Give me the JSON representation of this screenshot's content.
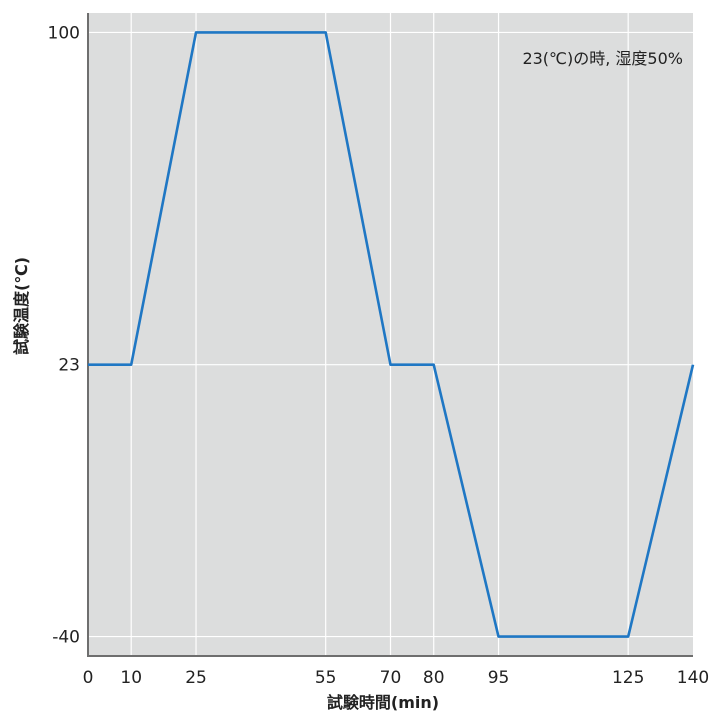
{
  "chart_data": {
    "type": "line",
    "title": "",
    "xlabel": "試験時間(min)",
    "ylabel": "試験温度(℃)",
    "annotation": "23(℃)の時, 湿度50%",
    "xlim": [
      0,
      140
    ],
    "ylim": [
      -44.5,
      104.5
    ],
    "x_ticks": [
      0,
      10,
      25,
      55,
      70,
      80,
      95,
      125,
      140
    ],
    "y_ticks": [
      100,
      23,
      -40
    ],
    "grid": true,
    "series": [
      {
        "x": [
          0,
          10,
          25,
          55,
          70,
          80,
          95,
          125,
          140
        ],
        "y": [
          23,
          23,
          100,
          100,
          23,
          23,
          -40,
          -40,
          23
        ]
      }
    ],
    "colors": {
      "line": "#1f77c4",
      "plot_background": "#dcdddd",
      "grid": "#ffffff",
      "axis": "#6e6e6e"
    }
  }
}
